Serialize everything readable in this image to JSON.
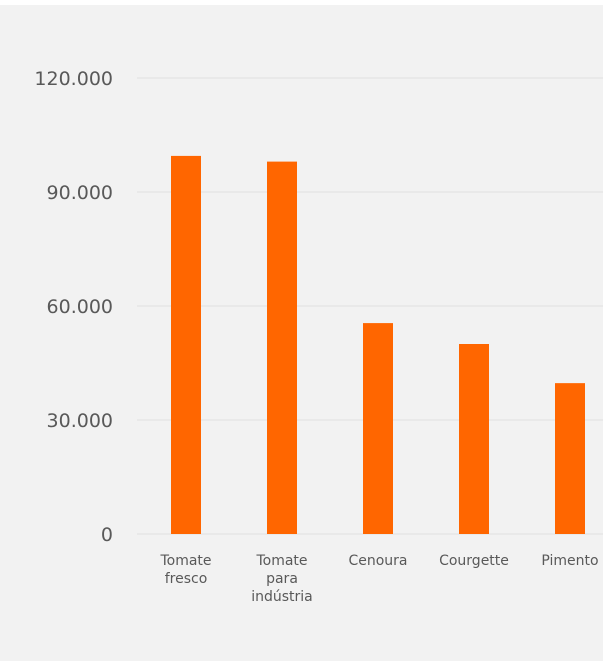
{
  "chart_data": {
    "type": "bar",
    "categories": [
      "Tomate fresco",
      "Tomate para indústria",
      "Cenoura",
      "Courgette",
      "Pimento"
    ],
    "category_lines": [
      [
        "Tomate",
        "fresco"
      ],
      [
        "Tomate",
        "para",
        "indústria"
      ],
      [
        "Cenoura"
      ],
      [
        "Courgette"
      ],
      [
        "Pimento"
      ]
    ],
    "values": [
      99500,
      98000,
      55500,
      50000,
      39700
    ],
    "ylim": [
      0,
      120000
    ],
    "yticks": [
      0,
      30000,
      60000,
      90000,
      120000
    ],
    "ytick_labels": [
      "0",
      "30.000",
      "60.000",
      "90.000",
      "120.000"
    ],
    "grid": true,
    "legend": "none",
    "bar_color": "#ff6600",
    "grid_color": "#e0e0e0",
    "background_color": "#f2f2f2",
    "title": "",
    "xlabel": "",
    "ylabel": ""
  }
}
